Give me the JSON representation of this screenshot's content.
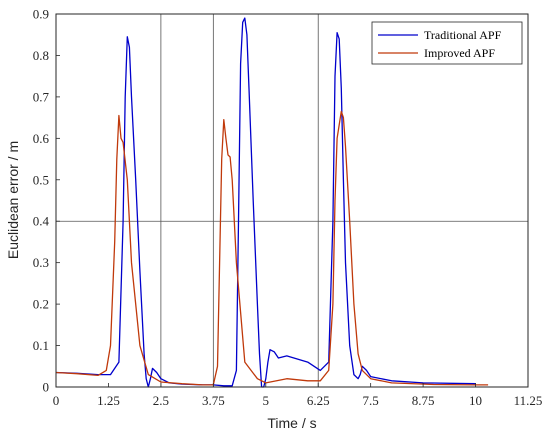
{
  "chart_data": {
    "type": "line",
    "xlabel": "Time / s",
    "ylabel": "Euclidean error / m",
    "xlim": [
      0,
      11.25
    ],
    "ylim": [
      0,
      0.9
    ],
    "xticks": [
      0,
      1.25,
      2.5,
      3.75,
      5,
      6.25,
      7.5,
      8.75,
      10,
      11.25
    ],
    "xtick_labels": [
      "0",
      "1.25",
      "2.5",
      "3.75",
      "5",
      "6.25",
      "7.5",
      "8.75",
      "10",
      "11.25"
    ],
    "yticks": [
      0,
      0.1,
      0.2,
      0.3,
      0.4,
      0.5,
      0.6,
      0.7,
      0.8,
      0.9
    ],
    "ytick_labels": [
      "0",
      "0.1",
      "0.2",
      "0.3",
      "0.4",
      "0.5",
      "0.6",
      "0.7",
      "0.8",
      "0.9"
    ],
    "grid": false,
    "reference_lines": {
      "vertical_x": [
        2.5,
        3.75,
        6.25
      ],
      "horizontal_y": [
        0.4
      ],
      "color": "#555555"
    },
    "legend": {
      "placement": "top-right"
    },
    "series": [
      {
        "name": "Traditional APF",
        "color": "#0000cc",
        "x": [
          0,
          0.5,
          1.0,
          1.3,
          1.5,
          1.6,
          1.65,
          1.7,
          1.75,
          1.8,
          1.9,
          2.0,
          2.1,
          2.15,
          2.2,
          2.25,
          2.3,
          2.4,
          2.5,
          2.7,
          3.0,
          3.5,
          3.75,
          4.0,
          4.2,
          4.3,
          4.35,
          4.4,
          4.45,
          4.5,
          4.55,
          4.6,
          4.7,
          4.8,
          4.85,
          4.9,
          4.95,
          5.0,
          5.05,
          5.1,
          5.2,
          5.3,
          5.5,
          6.0,
          6.3,
          6.5,
          6.6,
          6.65,
          6.7,
          6.75,
          6.8,
          6.85,
          6.9,
          7.0,
          7.1,
          7.2,
          7.25,
          7.3,
          7.4,
          7.5,
          8.0,
          8.75,
          10.0
        ],
        "y": [
          0.035,
          0.033,
          0.03,
          0.03,
          0.06,
          0.4,
          0.7,
          0.845,
          0.82,
          0.7,
          0.5,
          0.28,
          0.08,
          0.02,
          0.0,
          0.02,
          0.045,
          0.035,
          0.02,
          0.01,
          0.007,
          0.005,
          0.005,
          0.003,
          0.003,
          0.04,
          0.4,
          0.78,
          0.88,
          0.89,
          0.85,
          0.72,
          0.45,
          0.2,
          0.08,
          0.0,
          0.0,
          0.02,
          0.06,
          0.09,
          0.085,
          0.07,
          0.075,
          0.06,
          0.04,
          0.06,
          0.4,
          0.75,
          0.855,
          0.84,
          0.72,
          0.5,
          0.3,
          0.1,
          0.03,
          0.02,
          0.03,
          0.05,
          0.04,
          0.025,
          0.015,
          0.01,
          0.008
        ]
      },
      {
        "name": "Improved APF",
        "color": "#c0390b",
        "x": [
          0,
          0.5,
          1.0,
          1.2,
          1.3,
          1.4,
          1.45,
          1.5,
          1.55,
          1.6,
          1.7,
          1.8,
          2.0,
          2.2,
          2.5,
          3.0,
          3.5,
          3.75,
          3.85,
          3.9,
          3.95,
          4.0,
          4.05,
          4.1,
          4.15,
          4.2,
          4.3,
          4.5,
          4.8,
          5.0,
          5.5,
          6.0,
          6.3,
          6.5,
          6.6,
          6.65,
          6.7,
          6.8,
          6.85,
          6.9,
          7.0,
          7.1,
          7.2,
          7.3,
          7.5,
          8.0,
          9.0,
          10.0,
          10.3
        ],
        "y": [
          0.035,
          0.032,
          0.028,
          0.04,
          0.1,
          0.35,
          0.55,
          0.655,
          0.6,
          0.59,
          0.5,
          0.3,
          0.1,
          0.03,
          0.012,
          0.008,
          0.005,
          0.005,
          0.05,
          0.3,
          0.55,
          0.645,
          0.6,
          0.56,
          0.555,
          0.5,
          0.3,
          0.06,
          0.02,
          0.01,
          0.02,
          0.015,
          0.015,
          0.04,
          0.2,
          0.45,
          0.6,
          0.665,
          0.65,
          0.58,
          0.4,
          0.2,
          0.08,
          0.04,
          0.02,
          0.01,
          0.006,
          0.005,
          0.005
        ]
      }
    ]
  }
}
